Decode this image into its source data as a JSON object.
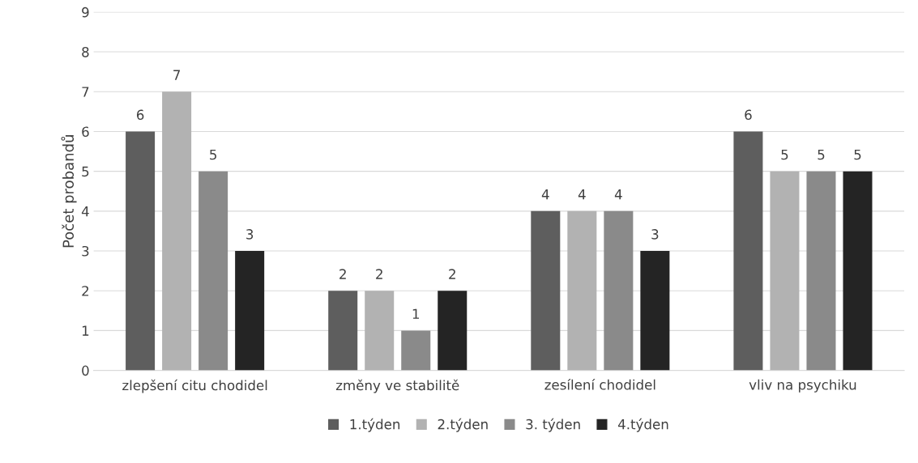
{
  "chart_data": {
    "type": "bar",
    "ylabel": "Počet probandů",
    "categories": [
      "zlepšení citu chodidel",
      "změny ve stabilitě",
      "zesílení chodidel",
      "vliv na psychiku"
    ],
    "series": [
      {
        "name": "1.týden",
        "color": "#5e5e5e",
        "values": [
          6,
          2,
          4,
          6
        ]
      },
      {
        "name": "2.týden",
        "color": "#b2b2b2",
        "values": [
          7,
          2,
          4,
          5
        ]
      },
      {
        "name": "3. týden",
        "color": "#8a8a8a",
        "values": [
          5,
          1,
          4,
          5
        ]
      },
      {
        "name": "4.týden",
        "color": "#242424",
        "values": [
          3,
          2,
          3,
          5
        ]
      }
    ],
    "ylim": [
      0,
      9
    ],
    "yticks": [
      0,
      1,
      2,
      3,
      4,
      5,
      6,
      7,
      8,
      9
    ],
    "grid": "y",
    "legend": "bottom",
    "data_labels": true
  }
}
